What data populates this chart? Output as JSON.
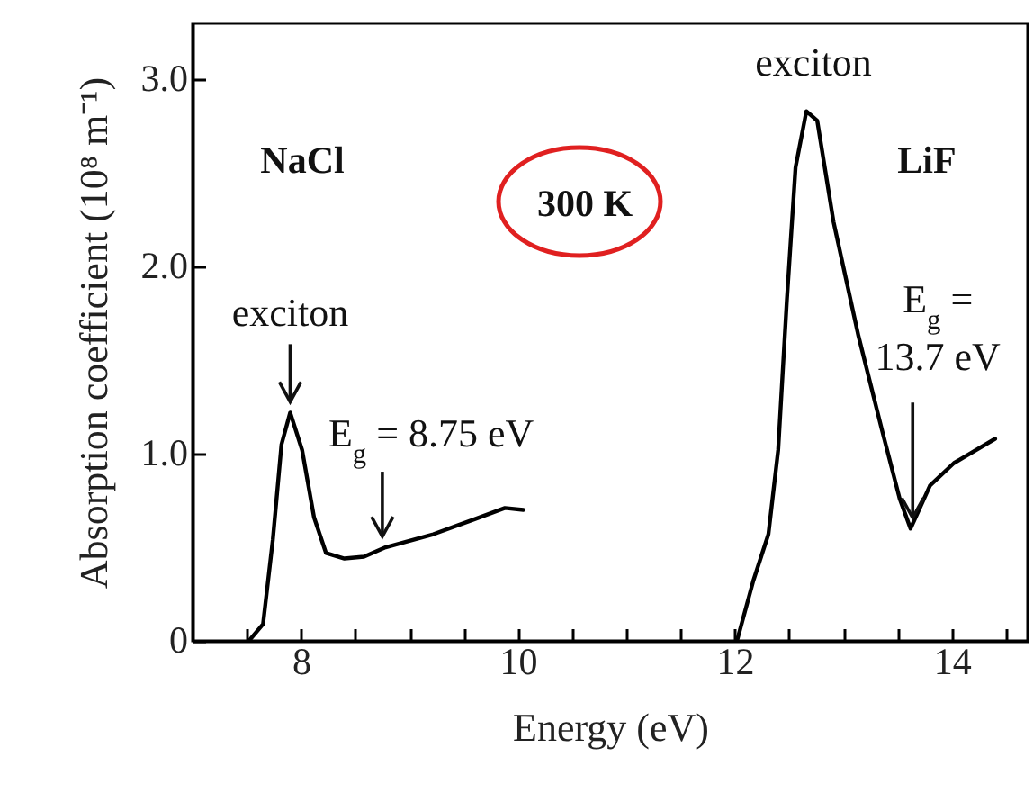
{
  "chart_data": {
    "type": "line",
    "xlabel": "Energy (eV)",
    "ylabel": "Absorption coefficient (10⁸ m⁻¹)",
    "xlim": [
      7.0,
      14.7
    ],
    "ylim": [
      0,
      3.3
    ],
    "xticks": [
      {
        "value": 7.5,
        "label": null
      },
      8,
      {
        "value": 8.5,
        "label": null
      },
      {
        "value": 9,
        "label": null
      },
      {
        "value": 9.5,
        "label": null
      },
      10,
      {
        "value": 10.5,
        "label": null
      },
      {
        "value": 11,
        "label": null
      },
      {
        "value": 11.5,
        "label": null
      },
      12,
      {
        "value": 12.5,
        "label": null
      },
      {
        "value": 13,
        "label": null
      },
      {
        "value": 13.5,
        "label": null
      },
      14,
      {
        "value": 14.5,
        "label": null
      }
    ],
    "yticks": [
      0,
      {
        "value": 1,
        "label": "1.0"
      },
      {
        "value": 2,
        "label": "2.0"
      },
      {
        "value": 3,
        "label": "3.0"
      }
    ],
    "series": [
      {
        "color": "#000000",
        "x": [
          7.52,
          7.65,
          7.74,
          7.82,
          7.9,
          8.01,
          8.12,
          8.23,
          8.4,
          8.58,
          8.78,
          9.22,
          9.6,
          9.88,
          10.05
        ],
        "values": [
          0,
          0.09,
          0.54,
          1.05,
          1.22,
          1.02,
          0.66,
          0.47,
          0.44,
          0.45,
          0.5,
          0.57,
          0.65,
          0.71,
          0.7
        ]
      },
      {
        "color": "#000000",
        "x": [
          12.02,
          12.17,
          12.31,
          12.4,
          12.48,
          12.56,
          12.66,
          12.76,
          12.91,
          13.14,
          13.36,
          13.52,
          13.62,
          13.8,
          14.02,
          14.4
        ],
        "values": [
          0,
          0.32,
          0.57,
          1.02,
          1.82,
          2.53,
          2.83,
          2.78,
          2.24,
          1.63,
          1.12,
          0.76,
          0.6,
          0.83,
          0.95,
          1.08
        ]
      }
    ],
    "annotations": [
      {
        "text": "exciton",
        "x": 7.9,
        "y": 1.22
      },
      {
        "text": "E$_{g}$ = 8.75 eV",
        "x": 8.75,
        "y": 0.5
      },
      {
        "text": "exciton",
        "x": 12.66,
        "y": 2.83
      },
      {
        "text": "E$_{g}$ =\n13.7 eV",
        "x": 13.64,
        "y": 0.6
      },
      "NaCl",
      "300 K",
      "LiF"
    ]
  }
}
